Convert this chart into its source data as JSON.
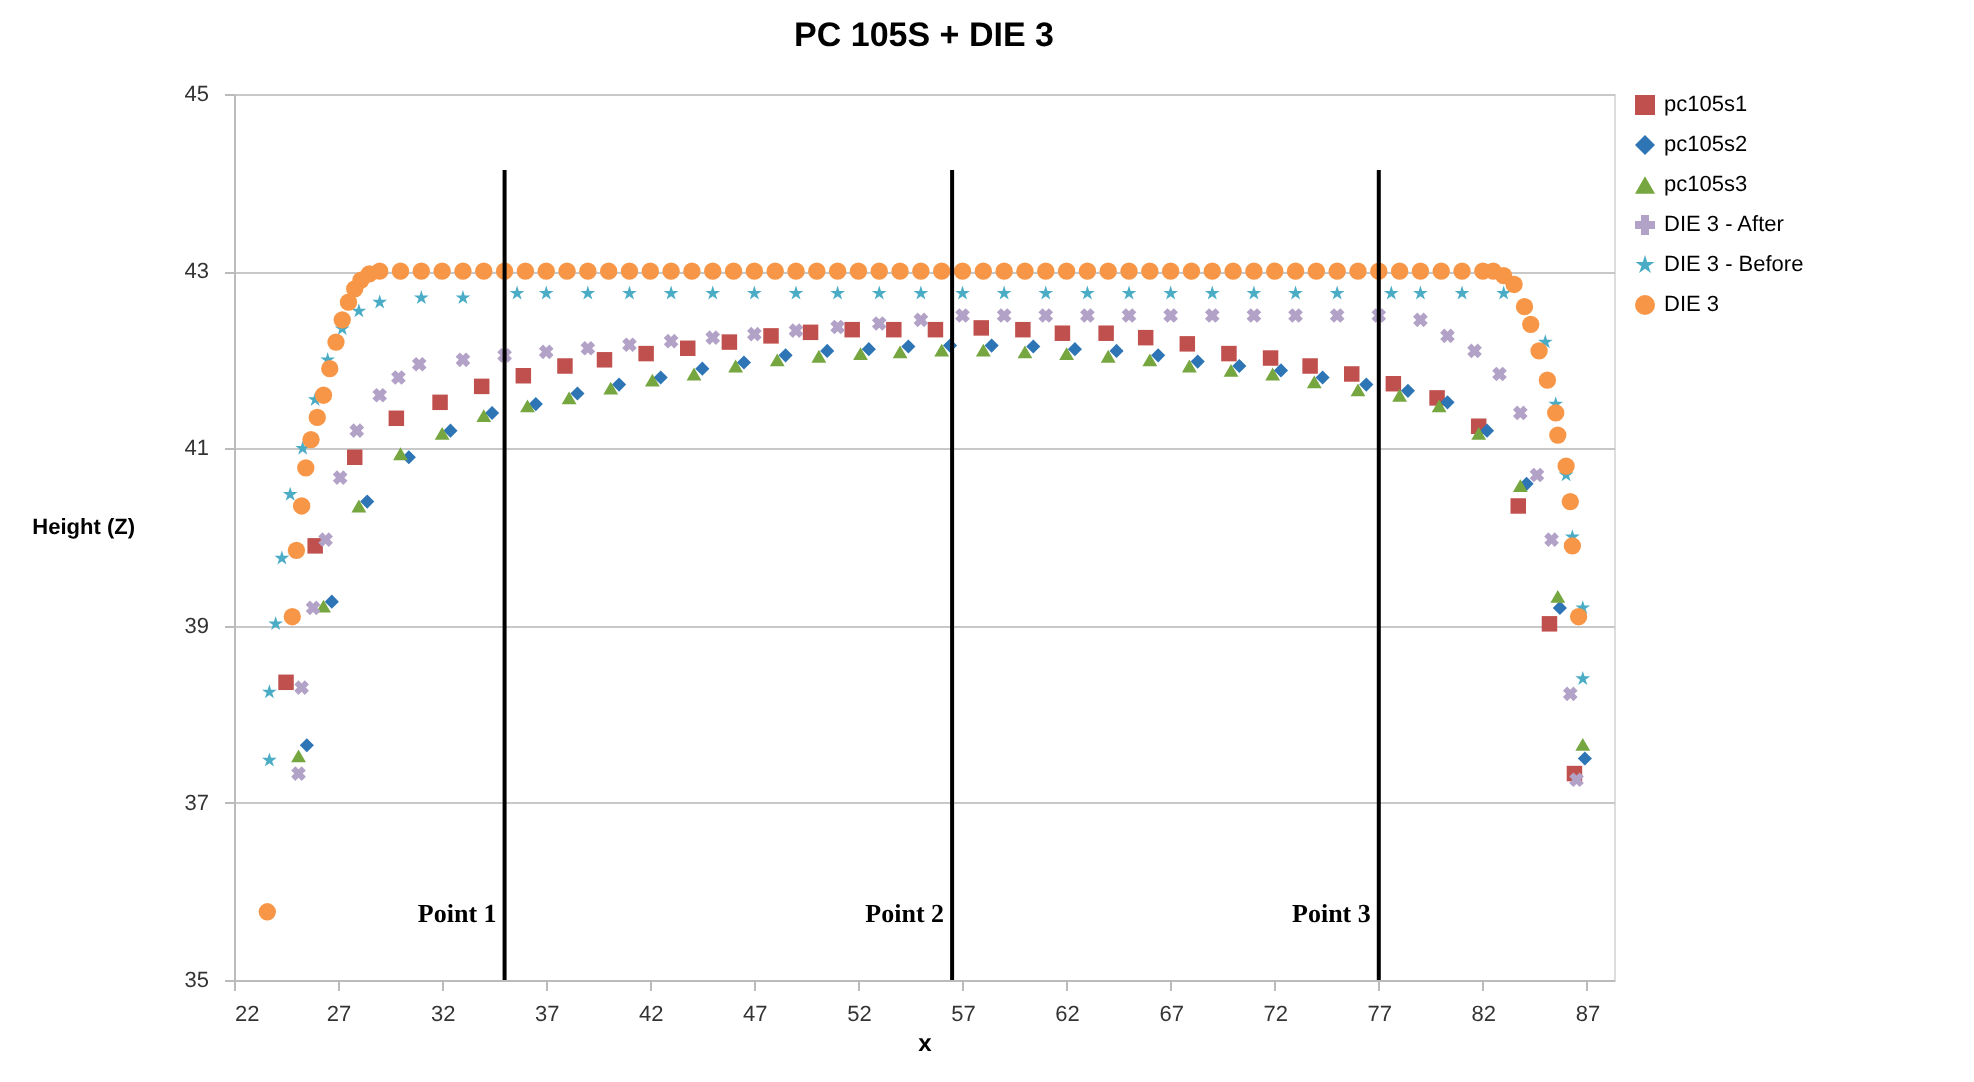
{
  "chart_data": {
    "type": "scatter",
    "title": "PC 105S + DIE 3",
    "xlabel": "x",
    "ylabel": "Height (Z)",
    "xlim": [
      22,
      88.3
    ],
    "xticks": [
      22,
      27,
      32,
      37,
      42,
      47,
      52,
      57,
      62,
      67,
      72,
      77,
      82,
      87
    ],
    "ylim": [
      35,
      45
    ],
    "yticks": [
      35,
      37,
      39,
      41,
      43,
      45
    ],
    "grid": "y",
    "legend": "right",
    "ref_lines": [
      {
        "axis": "x",
        "value": 35,
        "label": "Point 1",
        "color": "#000000"
      },
      {
        "axis": "x",
        "value": 56.5,
        "label": "Point 2",
        "color": "#000000"
      },
      {
        "axis": "x",
        "value": 77,
        "label": "Point 3",
        "color": "#000000"
      }
    ],
    "series": [
      {
        "name": "pc105s1",
        "color": "#c0504d",
        "marker": "square",
        "x": [
          24.5,
          25.9,
          27.8,
          29.8,
          31.9,
          33.9,
          35.9,
          37.9,
          39.8,
          41.8,
          43.8,
          45.8,
          47.8,
          49.7,
          51.7,
          53.7,
          55.7,
          57.9,
          59.9,
          61.8,
          63.9,
          65.8,
          67.8,
          69.8,
          71.8,
          73.7,
          75.7,
          77.7,
          79.8,
          81.8,
          83.7,
          85.2,
          86.4
        ],
        "values": [
          38.36,
          39.9,
          40.9,
          41.34,
          41.52,
          41.7,
          41.82,
          41.93,
          42.0,
          42.07,
          42.13,
          42.2,
          42.27,
          42.31,
          42.34,
          42.34,
          42.34,
          42.36,
          42.34,
          42.3,
          42.3,
          42.25,
          42.18,
          42.07,
          42.02,
          41.93,
          41.84,
          41.73,
          41.57,
          41.25,
          40.35,
          39.02,
          37.33
        ]
      },
      {
        "name": "pc105s2",
        "color": "#2e75b6",
        "marker": "diamond",
        "x": [
          25.5,
          26.7,
          28.4,
          30.4,
          32.4,
          34.4,
          36.5,
          38.5,
          40.5,
          42.5,
          44.5,
          46.5,
          48.5,
          50.5,
          52.5,
          54.4,
          56.4,
          58.4,
          60.4,
          62.4,
          64.4,
          66.4,
          68.3,
          70.3,
          72.3,
          74.3,
          76.4,
          78.4,
          80.3,
          82.2,
          84.1,
          85.7,
          86.9
        ],
        "values": [
          37.65,
          39.27,
          40.4,
          40.9,
          41.2,
          41.4,
          41.5,
          41.62,
          41.72,
          41.8,
          41.9,
          41.97,
          42.05,
          42.1,
          42.12,
          42.15,
          42.16,
          42.16,
          42.15,
          42.12,
          42.1,
          42.05,
          41.98,
          41.93,
          41.88,
          41.8,
          41.72,
          41.65,
          41.52,
          41.2,
          40.6,
          39.2,
          37.5
        ]
      },
      {
        "name": "pc105s3",
        "color": "#76a640",
        "marker": "triangle",
        "x": [
          25.1,
          26.3,
          28.0,
          30.0,
          32.0,
          34.0,
          36.1,
          38.1,
          40.1,
          42.1,
          44.1,
          46.1,
          48.1,
          50.1,
          52.1,
          54.0,
          56.0,
          58.0,
          60.0,
          62.0,
          64.0,
          66.0,
          67.9,
          69.9,
          71.9,
          73.9,
          76.0,
          78.0,
          79.9,
          81.8,
          83.8,
          85.6,
          86.8
        ],
        "values": [
          37.53,
          39.22,
          40.35,
          40.94,
          41.17,
          41.37,
          41.48,
          41.57,
          41.68,
          41.77,
          41.84,
          41.93,
          42.0,
          42.04,
          42.07,
          42.09,
          42.11,
          42.11,
          42.09,
          42.07,
          42.04,
          42.0,
          41.93,
          41.88,
          41.84,
          41.75,
          41.66,
          41.6,
          41.48,
          41.17,
          40.58,
          39.33,
          37.66
        ]
      },
      {
        "name": "DIE 3 - After",
        "color": "#b3a2c7",
        "marker": "cross",
        "x": [
          25.1,
          25.25,
          25.8,
          26.4,
          27.1,
          27.9,
          29.0,
          29.9,
          30.9,
          33,
          35,
          37,
          39,
          41,
          43,
          45,
          47,
          49,
          51,
          53,
          55,
          57,
          59,
          61,
          63,
          65,
          67,
          69,
          71,
          73,
          75,
          77,
          79,
          80.3,
          81.6,
          82.8,
          83.8,
          84.6,
          85.3,
          86.2,
          86.5
        ],
        "values": [
          37.33,
          38.3,
          39.2,
          39.97,
          40.67,
          41.2,
          41.6,
          41.8,
          41.95,
          42.0,
          42.05,
          42.09,
          42.13,
          42.17,
          42.21,
          42.25,
          42.29,
          42.33,
          42.37,
          42.41,
          42.45,
          42.5,
          42.5,
          42.5,
          42.5,
          42.5,
          42.5,
          42.5,
          42.5,
          42.5,
          42.5,
          42.5,
          42.45,
          42.27,
          42.1,
          41.84,
          41.4,
          40.7,
          39.97,
          38.23,
          37.26
        ]
      },
      {
        "name": "DIE 3 - Before",
        "color": "#4bacc6",
        "marker": "star",
        "x": [
          23.7,
          23.7,
          24.0,
          24.3,
          24.7,
          25.3,
          25.9,
          26.5,
          27.2,
          28.0,
          29,
          31,
          33,
          35.6,
          37,
          39,
          41,
          43,
          45,
          47,
          49,
          51,
          53,
          55,
          57,
          59,
          61,
          63,
          65,
          67,
          69,
          71,
          73,
          75,
          77.6,
          79,
          81,
          83,
          84,
          85,
          85.5,
          86.0,
          86.3,
          86.8,
          86.8
        ],
        "values": [
          37.48,
          38.25,
          39.02,
          39.76,
          40.48,
          41.0,
          41.55,
          42.0,
          42.35,
          42.55,
          42.65,
          42.7,
          42.7,
          42.75,
          42.75,
          42.75,
          42.75,
          42.75,
          42.75,
          42.75,
          42.75,
          42.75,
          42.75,
          42.75,
          42.75,
          42.75,
          42.75,
          42.75,
          42.75,
          42.75,
          42.75,
          42.75,
          42.75,
          42.75,
          42.75,
          42.75,
          42.75,
          42.75,
          null,
          42.2,
          41.5,
          40.7,
          40.0,
          39.2,
          38.4
        ]
      },
      {
        "name": "DIE 3",
        "color": "#f79646",
        "marker": "circle",
        "x": [
          23.6,
          24.8,
          25.0,
          25.25,
          25.45,
          25.7,
          26.0,
          26.3,
          26.6,
          26.9,
          27.2,
          27.5,
          27.8,
          28.1,
          28.5,
          29.0,
          30,
          31,
          32,
          33,
          34,
          35,
          36,
          37,
          38,
          39,
          40,
          41,
          42,
          43,
          44,
          45,
          46,
          47,
          48,
          49,
          50,
          51,
          52,
          53,
          54,
          55,
          56,
          57,
          58,
          59,
          60,
          61,
          62,
          63,
          64,
          65,
          66,
          67,
          68,
          69,
          70,
          71,
          72,
          73,
          74,
          75,
          76,
          77,
          78,
          79,
          80,
          81,
          82,
          82.5,
          83,
          83.5,
          84,
          84.3,
          84.7,
          85.1,
          85.5,
          85.6,
          86.0,
          86.2,
          86.3,
          86.6
        ],
        "values": [
          35.77,
          39.1,
          39.85,
          40.35,
          40.78,
          41.1,
          41.35,
          41.6,
          41.9,
          42.2,
          42.45,
          42.65,
          42.8,
          42.9,
          42.97,
          43.0,
          43,
          43,
          43,
          43,
          43,
          43,
          43,
          43,
          43,
          43,
          43,
          43,
          43,
          43,
          43,
          43,
          43,
          43,
          43,
          43,
          43,
          43,
          43,
          43,
          43,
          43,
          43,
          43,
          43,
          43,
          43,
          43,
          43,
          43,
          43,
          43,
          43,
          43,
          43,
          43,
          43,
          43,
          43,
          43,
          43,
          43,
          43,
          43,
          43,
          43,
          43,
          43,
          43,
          43.0,
          42.95,
          42.85,
          42.6,
          42.4,
          42.1,
          41.77,
          41.4,
          41.15,
          40.8,
          40.4,
          39.9,
          39.1
        ]
      }
    ]
  }
}
